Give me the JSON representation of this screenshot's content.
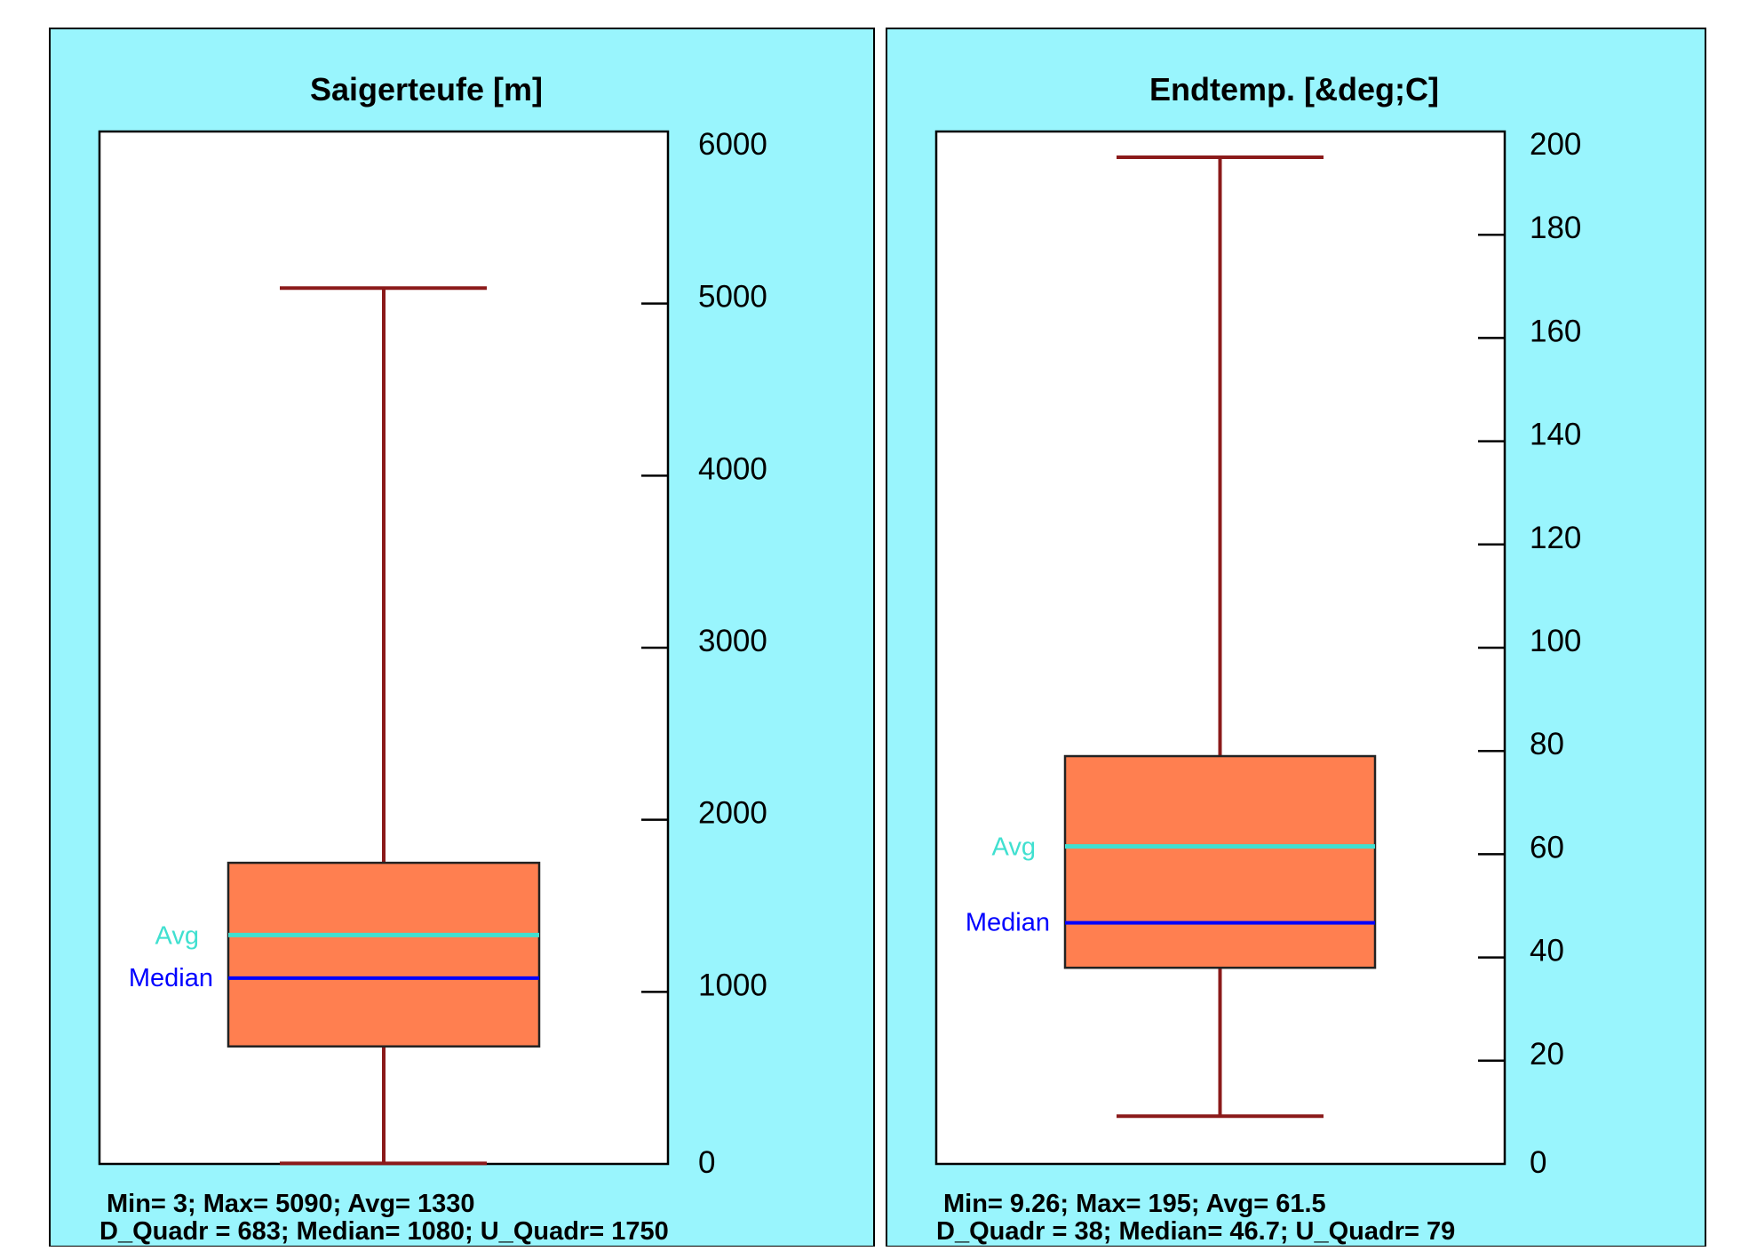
{
  "colors": {
    "panel_bg": "#99f5fd",
    "plot_bg": "#ffffff",
    "box_fill": "#ff7f50",
    "whisker": "#8b1a1a",
    "avg_line": "#40e0d0",
    "median_line": "#0000ff",
    "axis": "#000000"
  },
  "chart_data": [
    {
      "type": "box",
      "title": "Saigerteufe [m]",
      "ylim": [
        0,
        6000
      ],
      "yticks": [
        0,
        1000,
        2000,
        3000,
        4000,
        5000,
        6000
      ],
      "min": 3,
      "max": 5090,
      "avg": 1330,
      "median": 1080,
      "d_quadr": 683,
      "u_quadr": 1750,
      "avg_label": "Avg",
      "median_label": "Median",
      "stats_line1": "Min= 3;  Max= 5090;  Avg= 1330",
      "stats_line2": "D_Quadr = 683;  Median= 1080;  U_Quadr= 1750"
    },
    {
      "type": "box",
      "title": "Endtemp. [&deg;C]",
      "ylim": [
        0,
        200
      ],
      "yticks": [
        0,
        20,
        40,
        60,
        80,
        100,
        120,
        140,
        160,
        180,
        200
      ],
      "min": 9.26,
      "max": 195,
      "avg": 61.5,
      "median": 46.7,
      "d_quadr": 38,
      "u_quadr": 79,
      "avg_label": "Avg",
      "median_label": "Median",
      "stats_line1": "Min= 9.26;  Max= 195;  Avg= 61.5",
      "stats_line2": "D_Quadr = 38;  Median= 46.7;  U_Quadr= 79"
    }
  ]
}
